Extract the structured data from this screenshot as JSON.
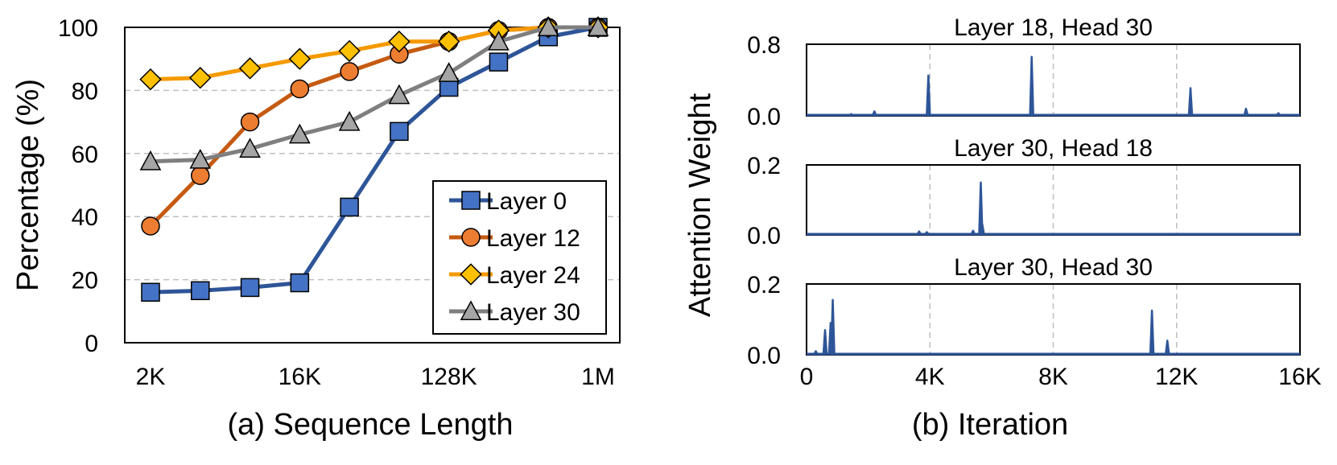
{
  "chart_data": [
    {
      "type": "line",
      "caption": "(a) Sequence Length",
      "ylabel": "Percentage (%)",
      "y_ticks": [
        "0",
        "20",
        "40",
        "60",
        "80",
        "100"
      ],
      "ylim": [
        0,
        100
      ],
      "x_ticks": [
        "2K",
        "16K",
        "128K",
        "1M"
      ],
      "x_tick_positions": [
        0,
        3,
        6,
        9
      ],
      "x": [
        0,
        1,
        2,
        3,
        4,
        5,
        6,
        7,
        8,
        9
      ],
      "grid": "horizontal dashed",
      "legend_placement": "bottom-right",
      "series": [
        {
          "name": "Layer 0",
          "marker": "square",
          "color": "#2e5598",
          "fill": "#4472c4",
          "values": [
            16,
            16.5,
            17.5,
            19,
            43,
            67,
            81,
            89,
            97,
            100
          ]
        },
        {
          "name": "Layer 12",
          "marker": "circle",
          "color": "#c55a11",
          "fill": "#ed7d31",
          "values": [
            37,
            53,
            70,
            80.5,
            86,
            91.5,
            95.5,
            99,
            100,
            100
          ]
        },
        {
          "name": "Layer 24",
          "marker": "diamond",
          "color": "#f59a00",
          "fill": "#ffc000",
          "values": [
            83.5,
            84,
            87,
            90,
            92.5,
            95.5,
            95.5,
            99,
            100,
            100
          ]
        },
        {
          "name": "Layer 30",
          "marker": "triangle",
          "color": "#7f7f7f",
          "fill": "#a5a5a5",
          "values": [
            57.5,
            58,
            61.5,
            66,
            70,
            78.5,
            85.5,
            95.5,
            100,
            100
          ]
        }
      ]
    },
    {
      "type": "line",
      "caption": "(b) Iteration",
      "ylabel": "Attention Weight",
      "x_ticks": [
        "0",
        "4K",
        "8K",
        "12K",
        "16K"
      ],
      "xlim": [
        0,
        16000
      ],
      "vertical_gridlines": [
        4000,
        8000,
        12000
      ],
      "color": "#2e5598",
      "panels": [
        {
          "title": "Layer 18, Head 30",
          "y_ticks": [
            "0.0",
            "0.8"
          ],
          "ylim": [
            0,
            0.8
          ],
          "spikes": [
            [
              1450,
              0.02
            ],
            [
              2200,
              0.05
            ],
            [
              3950,
              0.45
            ],
            [
              7300,
              0.66
            ],
            [
              12450,
              0.31
            ],
            [
              14250,
              0.08
            ],
            [
              15300,
              0.03
            ]
          ]
        },
        {
          "title": "Layer 30, Head 18",
          "y_ticks": [
            "0.0",
            "0.2"
          ],
          "ylim": [
            0,
            0.2
          ],
          "spikes": [
            [
              3650,
              0.01
            ],
            [
              3900,
              0.008
            ],
            [
              5400,
              0.012
            ],
            [
              5650,
              0.15
            ],
            [
              5700,
              0.03
            ]
          ]
        },
        {
          "title": "Layer 30, Head 30",
          "y_ticks": [
            "0.0",
            "0.2"
          ],
          "ylim": [
            0,
            0.2
          ],
          "spikes": [
            [
              300,
              0.01
            ],
            [
              600,
              0.07
            ],
            [
              780,
              0.09
            ],
            [
              850,
              0.155
            ],
            [
              11200,
              0.125
            ],
            [
              11700,
              0.04
            ]
          ]
        }
      ]
    }
  ]
}
